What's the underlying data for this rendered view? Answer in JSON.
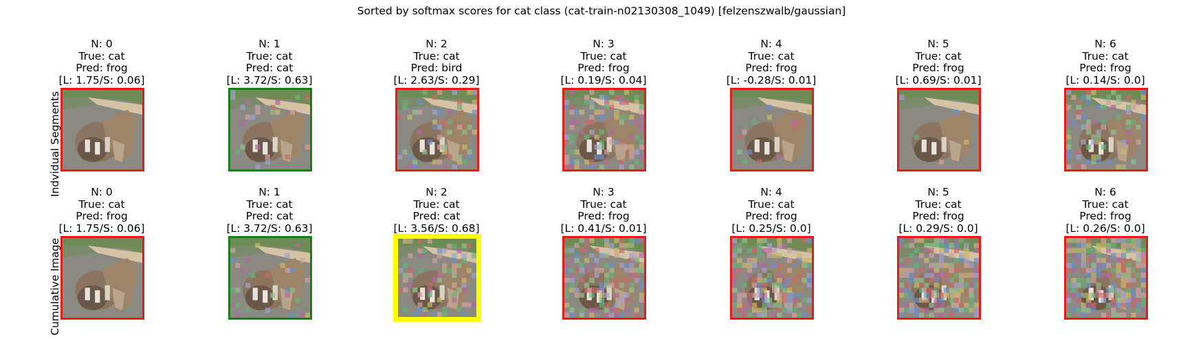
{
  "figure": {
    "title": "Sorted by softmax scores for cat class (cat-train-n02130308_1049) [felzenszwalb/gaussian]",
    "row_labels": [
      "Indvidual Segments",
      "Cumulative Image"
    ]
  },
  "colors": {
    "correct": "#1a7f1a",
    "incorrect": "#e51c1c",
    "best": "#ffff00"
  },
  "rows": [
    {
      "name": "individual-segments",
      "panels": [
        {
          "n": "N: 0",
          "true": "True: cat",
          "pred": "Pred: frog",
          "score": "[L: 1.75/S: 0.06]",
          "status": "incorrect"
        },
        {
          "n": "N: 1",
          "true": "True: cat",
          "pred": "Pred: cat",
          "score": "[L: 3.72/S: 0.63]",
          "status": "correct"
        },
        {
          "n": "N: 2",
          "true": "True: cat",
          "pred": "Pred: bird",
          "score": "[L: 2.63/S: 0.29]",
          "status": "incorrect"
        },
        {
          "n": "N: 3",
          "true": "True: cat",
          "pred": "Pred: frog",
          "score": "[L: 0.19/S: 0.04]",
          "status": "incorrect"
        },
        {
          "n": "N: 4",
          "true": "True: cat",
          "pred": "Pred: frog",
          "score": "[L: -0.28/S: 0.01]",
          "status": "incorrect"
        },
        {
          "n": "N: 5",
          "true": "True: cat",
          "pred": "Pred: frog",
          "score": "[L: 0.69/S: 0.01]",
          "status": "incorrect"
        },
        {
          "n": "N: 6",
          "true": "True: cat",
          "pred": "Pred: frog",
          "score": "[L: 0.14/S: 0.0]",
          "status": "incorrect"
        }
      ]
    },
    {
      "name": "cumulative-image",
      "panels": [
        {
          "n": "N: 0",
          "true": "True: cat",
          "pred": "Pred: frog",
          "score": "[L: 1.75/S: 0.06]",
          "status": "incorrect"
        },
        {
          "n": "N: 1",
          "true": "True: cat",
          "pred": "Pred: cat",
          "score": "[L: 3.72/S: 0.63]",
          "status": "correct"
        },
        {
          "n": "N: 2",
          "true": "True: cat",
          "pred": "Pred: cat",
          "score": "[L: 3.56/S: 0.68]",
          "status": "best"
        },
        {
          "n": "N: 3",
          "true": "True: cat",
          "pred": "Pred: frog",
          "score": "[L: 0.41/S: 0.01]",
          "status": "incorrect"
        },
        {
          "n": "N: 4",
          "true": "True: cat",
          "pred": "Pred: frog",
          "score": "[L: 0.25/S: 0.0]",
          "status": "incorrect"
        },
        {
          "n": "N: 5",
          "true": "True: cat",
          "pred": "Pred: frog",
          "score": "[L: 0.29/S: 0.0]",
          "status": "incorrect"
        },
        {
          "n": "N: 6",
          "true": "True: cat",
          "pred": "Pred: frog",
          "score": "[L: 0.26/S: 0.0]",
          "status": "incorrect"
        }
      ]
    }
  ]
}
